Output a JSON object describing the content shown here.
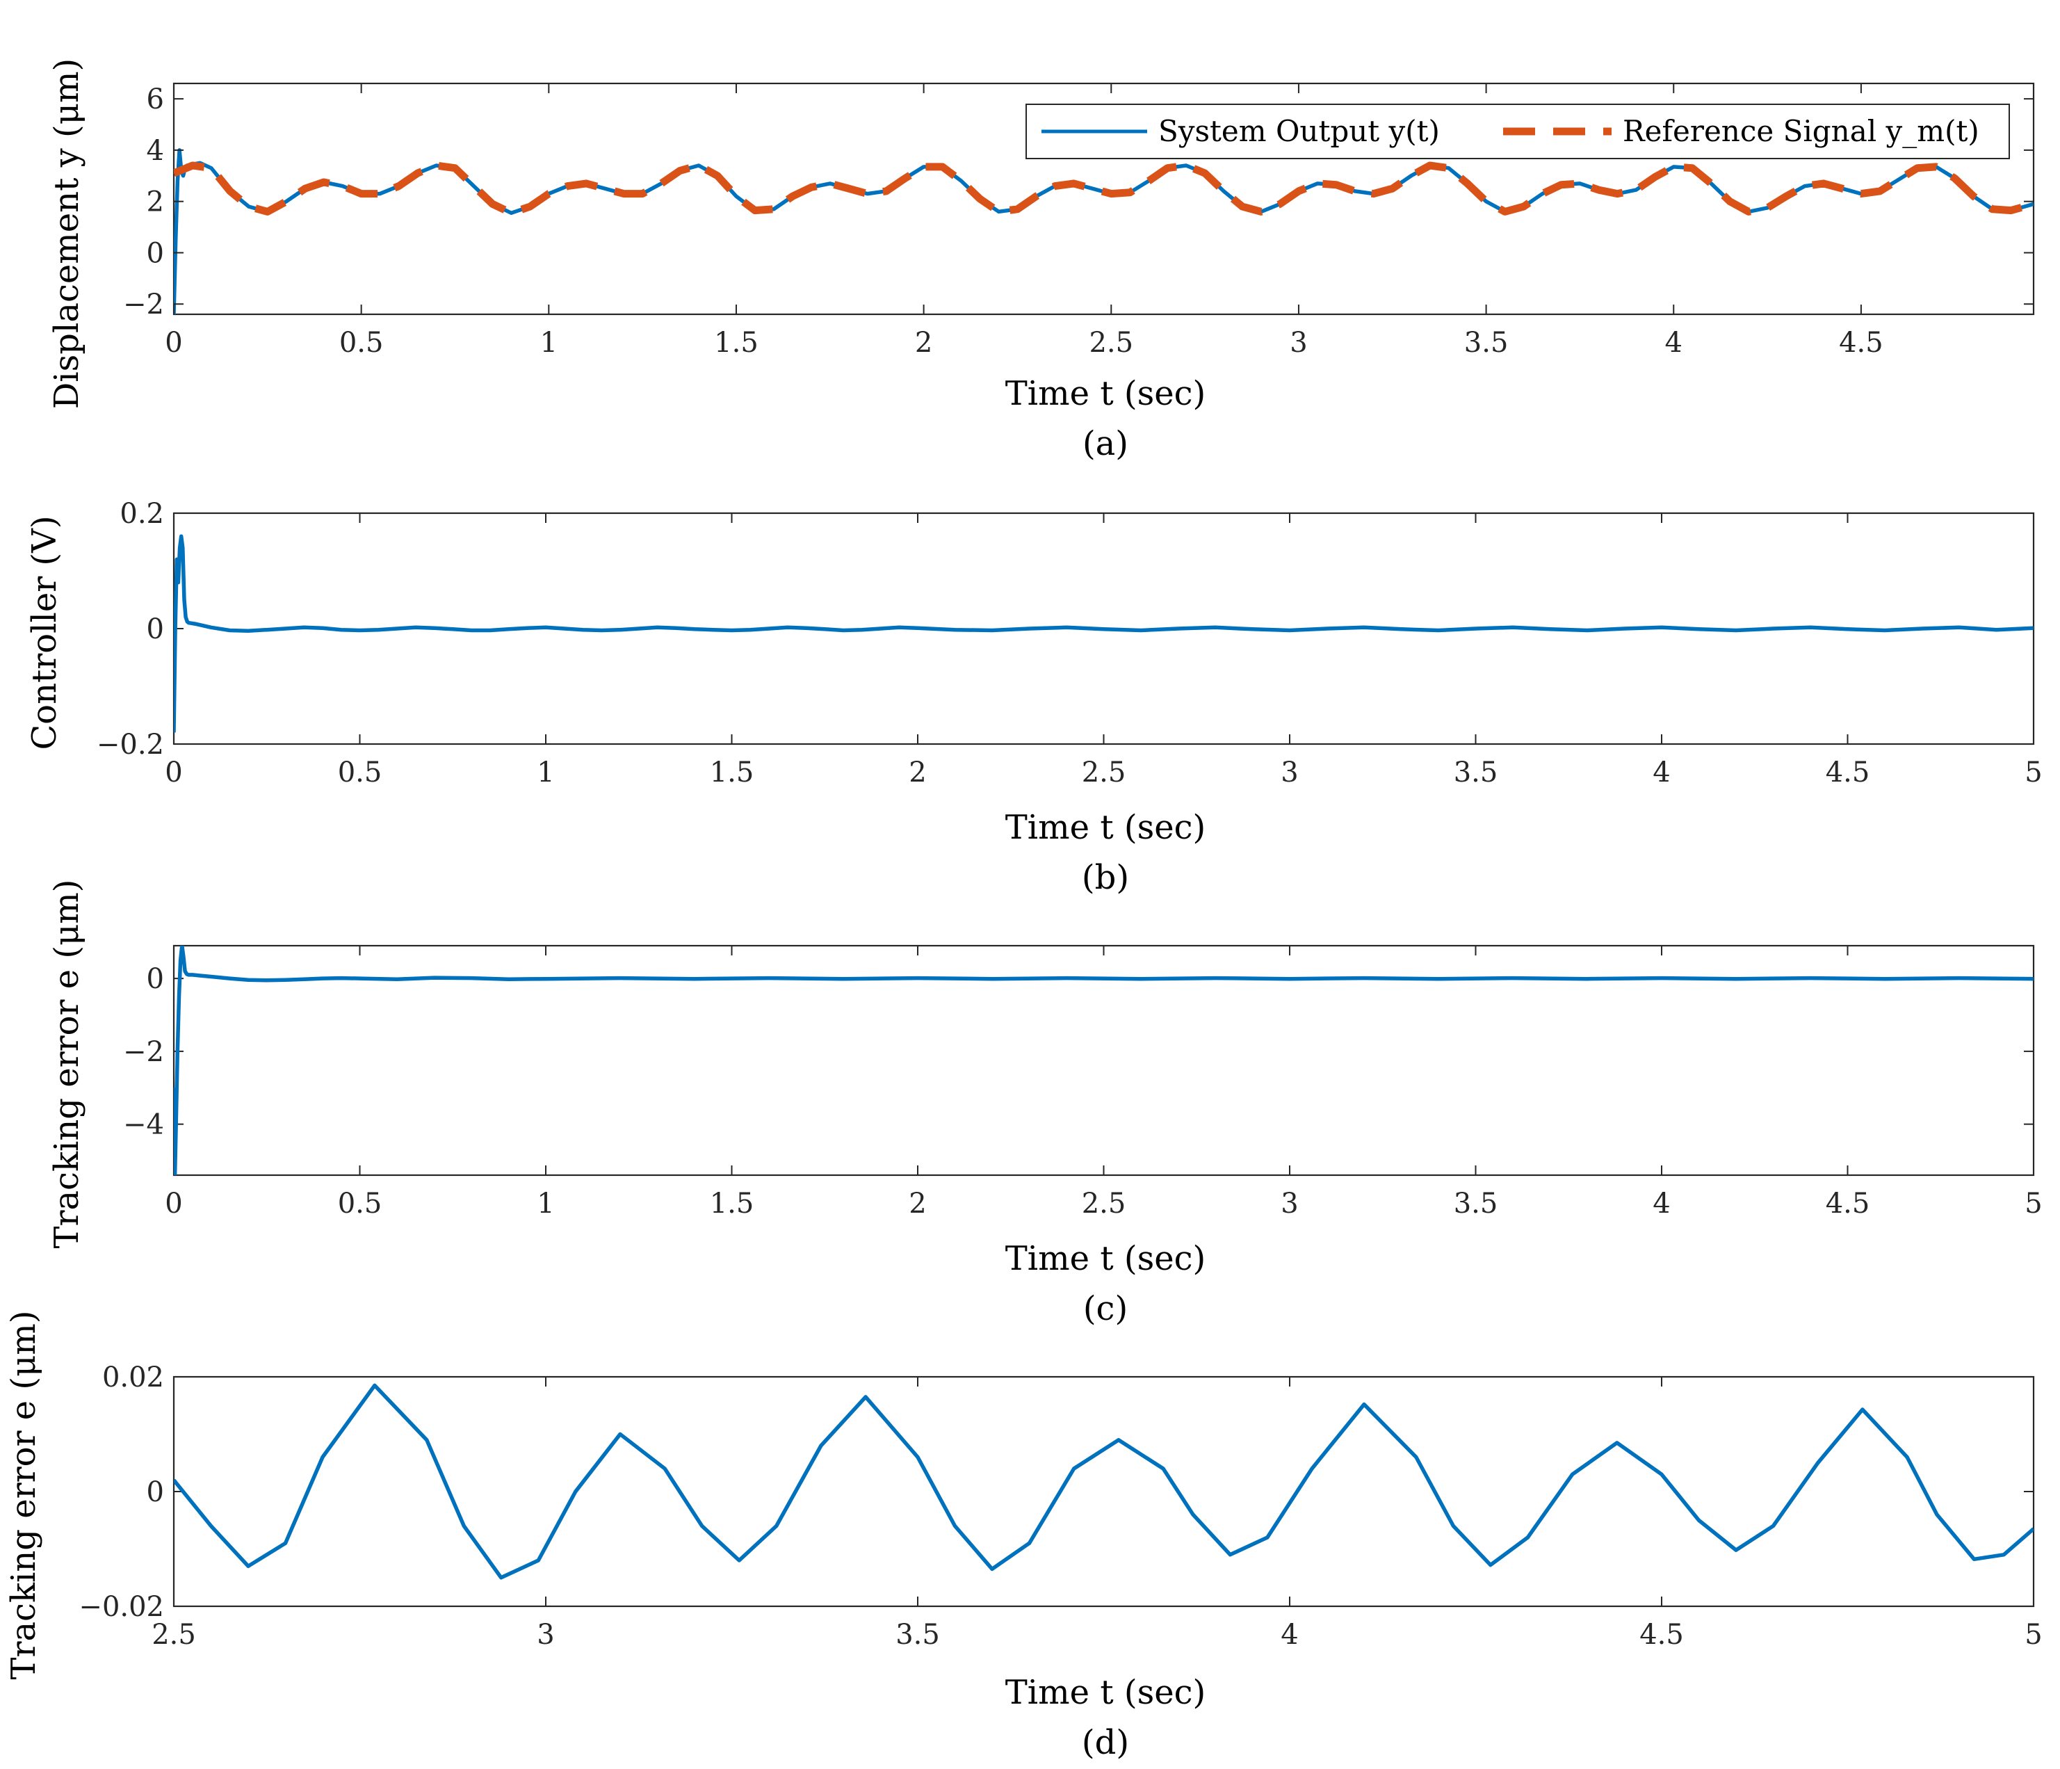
{
  "chart_data": [
    {
      "type": "line",
      "panel_label": "(a)",
      "xlabel": "Time t (sec)",
      "ylabel": "Displacement y (μm)",
      "xlim": [
        0,
        4.96
      ],
      "ylim": [
        -2.4,
        6.6
      ],
      "xticks": [
        0,
        0.5,
        1,
        1.5,
        2,
        2.5,
        3,
        3.5,
        4,
        4.5
      ],
      "xtick_labels": [
        "0",
        "0.5",
        "1",
        "1.5",
        "2",
        "2.5",
        "3",
        "3.5",
        "4",
        "4.5"
      ],
      "yticks": [
        -2,
        0,
        2,
        4,
        6
      ],
      "ytick_labels": [
        "−2",
        "0",
        "2",
        "4",
        "6"
      ],
      "grid": false,
      "legend_position": "top-right",
      "series": [
        {
          "name": "System Output y(t)",
          "color": "#0072bd",
          "style": "solid",
          "x": [
            0,
            0.005,
            0.01,
            0.015,
            0.02,
            0.025,
            0.03,
            0.035,
            0.04,
            0.05,
            0.07,
            0.1,
            0.15,
            0.2,
            0.25,
            0.3,
            0.35,
            0.4,
            0.45,
            0.5,
            0.55,
            0.6,
            0.65,
            0.7,
            0.75,
            0.8,
            0.85,
            0.9,
            0.95,
            1.0,
            1.05,
            1.1,
            1.15,
            1.2,
            1.25,
            1.3,
            1.35,
            1.4,
            1.45,
            1.5,
            1.55,
            1.6,
            1.65,
            1.7,
            1.75,
            1.8,
            1.85,
            1.9,
            1.95,
            2.0,
            2.05,
            2.1,
            2.15,
            2.2,
            2.25,
            2.3,
            2.35,
            2.4,
            2.45,
            2.5,
            2.55,
            2.6,
            2.65,
            2.7,
            2.75,
            2.8,
            2.85,
            2.9,
            2.95,
            3.0,
            3.05,
            3.1,
            3.15,
            3.2,
            3.25,
            3.3,
            3.35,
            3.4,
            3.45,
            3.5,
            3.55,
            3.6,
            3.65,
            3.7,
            3.75,
            3.8,
            3.85,
            3.9,
            3.95,
            4.0,
            4.05,
            4.1,
            4.15,
            4.2,
            4.25,
            4.3,
            4.35,
            4.4,
            4.45,
            4.5,
            4.55,
            4.6,
            4.65,
            4.7,
            4.75,
            4.8,
            4.85,
            4.9,
            4.96
          ],
          "y": [
            -2.4,
            0.5,
            2.8,
            4.0,
            3.2,
            3.0,
            3.3,
            3.4,
            3.4,
            3.45,
            3.5,
            3.3,
            2.4,
            1.8,
            1.6,
            2.0,
            2.5,
            2.75,
            2.6,
            2.3,
            2.3,
            2.6,
            3.1,
            3.4,
            3.3,
            2.6,
            1.9,
            1.55,
            1.8,
            2.3,
            2.6,
            2.7,
            2.5,
            2.3,
            2.3,
            2.7,
            3.2,
            3.4,
            3.0,
            2.2,
            1.65,
            1.7,
            2.2,
            2.55,
            2.7,
            2.5,
            2.3,
            2.4,
            2.9,
            3.35,
            3.35,
            2.8,
            2.1,
            1.6,
            1.7,
            2.2,
            2.6,
            2.7,
            2.5,
            2.3,
            2.35,
            2.8,
            3.3,
            3.4,
            3.1,
            2.4,
            1.8,
            1.6,
            1.9,
            2.4,
            2.7,
            2.65,
            2.4,
            2.3,
            2.5,
            3.0,
            3.4,
            3.3,
            2.7,
            2.0,
            1.6,
            1.8,
            2.3,
            2.65,
            2.7,
            2.45,
            2.3,
            2.45,
            2.95,
            3.35,
            3.3,
            2.7,
            2.0,
            1.6,
            1.75,
            2.2,
            2.6,
            2.7,
            2.5,
            2.3,
            2.4,
            2.85,
            3.3,
            3.35,
            2.9,
            2.2,
            1.7,
            1.65,
            1.9
          ]
        },
        {
          "name": "Reference Signal y_m(t)",
          "color": "#d95319",
          "style": "dashed",
          "x": [
            0,
            0.05,
            0.1,
            0.15,
            0.2,
            0.25,
            0.3,
            0.35,
            0.4,
            0.45,
            0.5,
            0.55,
            0.6,
            0.65,
            0.7,
            0.75,
            0.8,
            0.85,
            0.9,
            0.95,
            1.0,
            1.05,
            1.1,
            1.15,
            1.2,
            1.25,
            1.3,
            1.35,
            1.4,
            1.45,
            1.5,
            1.55,
            1.6,
            1.65,
            1.7,
            1.75,
            1.8,
            1.85,
            1.9,
            1.95,
            2.0,
            2.05,
            2.1,
            2.15,
            2.2,
            2.25,
            2.3,
            2.35,
            2.4,
            2.45,
            2.5,
            2.55,
            2.6,
            2.65,
            2.7,
            2.75,
            2.8,
            2.85,
            2.9,
            2.95,
            3.0,
            3.05,
            3.1,
            3.15,
            3.2,
            3.25,
            3.3,
            3.35,
            3.4,
            3.45,
            3.5,
            3.55,
            3.6,
            3.65,
            3.7,
            3.75,
            3.8,
            3.85,
            3.9,
            3.95,
            4.0,
            4.05,
            4.1,
            4.15,
            4.2,
            4.25,
            4.3,
            4.35,
            4.4,
            4.45,
            4.5,
            4.55,
            4.6,
            4.65,
            4.7,
            4.75,
            4.8,
            4.85,
            4.9,
            4.96
          ],
          "y": [
            3.1,
            3.4,
            3.3,
            2.4,
            1.8,
            1.6,
            2.0,
            2.5,
            2.75,
            2.6,
            2.3,
            2.3,
            2.6,
            3.1,
            3.4,
            3.3,
            2.6,
            1.9,
            1.55,
            1.8,
            2.3,
            2.6,
            2.7,
            2.5,
            2.3,
            2.3,
            2.7,
            3.2,
            3.4,
            3.0,
            2.2,
            1.65,
            1.7,
            2.2,
            2.55,
            2.7,
            2.5,
            2.3,
            2.4,
            2.9,
            3.35,
            3.35,
            2.8,
            2.1,
            1.6,
            1.7,
            2.2,
            2.6,
            2.7,
            2.5,
            2.3,
            2.35,
            2.8,
            3.3,
            3.4,
            3.1,
            2.4,
            1.8,
            1.6,
            1.9,
            2.4,
            2.7,
            2.65,
            2.4,
            2.3,
            2.5,
            3.0,
            3.4,
            3.3,
            2.7,
            2.0,
            1.6,
            1.8,
            2.3,
            2.65,
            2.7,
            2.45,
            2.3,
            2.45,
            2.95,
            3.35,
            3.3,
            2.7,
            2.0,
            1.6,
            1.75,
            2.2,
            2.6,
            2.7,
            2.5,
            2.3,
            2.4,
            2.85,
            3.3,
            3.35,
            2.9,
            2.2,
            1.7,
            1.65,
            1.9
          ]
        }
      ]
    },
    {
      "type": "line",
      "panel_label": "(b)",
      "xlabel": "Time t (sec)",
      "ylabel": "Controller (V)",
      "xlim": [
        0,
        5
      ],
      "ylim": [
        -0.2,
        0.2
      ],
      "xticks": [
        0,
        0.5,
        1,
        1.5,
        2,
        2.5,
        3,
        3.5,
        4,
        4.5,
        5
      ],
      "xtick_labels": [
        "0",
        "0.5",
        "1",
        "1.5",
        "2",
        "2.5",
        "3",
        "3.5",
        "4",
        "4.5",
        "5"
      ],
      "yticks": [
        -0.2,
        0,
        0.2
      ],
      "ytick_labels": [
        "−0.2",
        "0",
        "0.2"
      ],
      "grid": false,
      "series": [
        {
          "color": "#0072bd",
          "style": "solid",
          "x": [
            0,
            0.004,
            0.008,
            0.012,
            0.016,
            0.02,
            0.024,
            0.028,
            0.032,
            0.036,
            0.04,
            0.06,
            0.1,
            0.15,
            0.2,
            0.25,
            0.3,
            0.35,
            0.4,
            0.45,
            0.5,
            0.55,
            0.6,
            0.65,
            0.7,
            0.75,
            0.8,
            0.85,
            0.9,
            0.95,
            1.0,
            1.05,
            1.1,
            1.15,
            1.2,
            1.25,
            1.3,
            1.35,
            1.4,
            1.45,
            1.5,
            1.55,
            1.6,
            1.65,
            1.7,
            1.75,
            1.8,
            1.85,
            1.9,
            1.95,
            2.0,
            2.1,
            2.2,
            2.3,
            2.4,
            2.5,
            2.6,
            2.7,
            2.8,
            2.9,
            3.0,
            3.1,
            3.2,
            3.3,
            3.4,
            3.5,
            3.6,
            3.7,
            3.8,
            3.9,
            4.0,
            4.1,
            4.2,
            4.3,
            4.4,
            4.5,
            4.6,
            4.7,
            4.8,
            4.9,
            5.0
          ],
          "y": [
            -0.18,
            0.0,
            0.12,
            0.08,
            0.14,
            0.16,
            0.14,
            0.05,
            0.02,
            0.012,
            0.01,
            0.008,
            0.002,
            -0.003,
            -0.004,
            -0.002,
            0.0,
            0.002,
            0.001,
            -0.002,
            -0.003,
            -0.002,
            0.0,
            0.002,
            0.001,
            -0.001,
            -0.003,
            -0.003,
            -0.001,
            0.001,
            0.002,
            0.0,
            -0.002,
            -0.003,
            -0.002,
            0.0,
            0.002,
            0.001,
            -0.001,
            -0.002,
            -0.003,
            -0.002,
            0.0,
            0.002,
            0.001,
            -0.001,
            -0.003,
            -0.002,
            0.0,
            0.002,
            0.001,
            -0.002,
            -0.003,
            0.0,
            0.002,
            -0.001,
            -0.003,
            0.0,
            0.002,
            -0.001,
            -0.003,
            0.0,
            0.002,
            -0.001,
            -0.003,
            0.0,
            0.002,
            -0.001,
            -0.003,
            0.0,
            0.002,
            -0.001,
            -0.003,
            0.0,
            0.002,
            -0.001,
            -0.003,
            0.0,
            0.002,
            -0.002,
            0.001
          ]
        }
      ]
    },
    {
      "type": "line",
      "panel_label": "(c)",
      "xlabel": "Time t (sec)",
      "ylabel": "Tracking error e (μm)",
      "xlim": [
        0,
        5
      ],
      "ylim": [
        -5.4,
        0.9
      ],
      "xticks": [
        0,
        0.5,
        1,
        1.5,
        2,
        2.5,
        3,
        3.5,
        4,
        4.5,
        5
      ],
      "xtick_labels": [
        "0",
        "0.5",
        "1",
        "1.5",
        "2",
        "2.5",
        "3",
        "3.5",
        "4",
        "4.5",
        "5"
      ],
      "yticks": [
        -4,
        -2,
        0
      ],
      "ytick_labels": [
        "−4",
        "−2",
        "0"
      ],
      "grid": false,
      "series": [
        {
          "color": "#0072bd",
          "style": "solid",
          "x": [
            0,
            0.003,
            0.006,
            0.01,
            0.014,
            0.018,
            0.022,
            0.026,
            0.03,
            0.035,
            0.04,
            0.05,
            0.07,
            0.1,
            0.15,
            0.2,
            0.25,
            0.3,
            0.35,
            0.4,
            0.45,
            0.5,
            0.6,
            0.7,
            0.8,
            0.9,
            1.0,
            1.2,
            1.4,
            1.6,
            1.8,
            2.0,
            2.2,
            2.4,
            2.6,
            2.8,
            3.0,
            3.2,
            3.4,
            3.6,
            3.8,
            4.0,
            4.2,
            4.4,
            4.6,
            4.8,
            5.0
          ],
          "y": [
            -3.0,
            -5.4,
            -4.0,
            -2.0,
            -0.5,
            0.5,
            0.9,
            0.6,
            0.2,
            0.12,
            0.1,
            0.1,
            0.08,
            0.05,
            0.0,
            -0.04,
            -0.05,
            -0.04,
            -0.02,
            0.0,
            0.01,
            0.0,
            -0.02,
            0.02,
            0.01,
            -0.02,
            -0.01,
            0.01,
            -0.01,
            0.01,
            -0.01,
            0.01,
            -0.01,
            0.01,
            -0.01,
            0.01,
            -0.01,
            0.01,
            -0.01,
            0.01,
            -0.01,
            0.01,
            -0.01,
            0.01,
            -0.01,
            0.01,
            -0.01
          ]
        }
      ]
    },
    {
      "type": "line",
      "panel_label": "(d)",
      "xlabel": "Time t (sec)",
      "ylabel": "Tracking error e (μm)",
      "xlim": [
        2.5,
        5
      ],
      "ylim": [
        -0.02,
        0.02
      ],
      "xticks": [
        2.5,
        3,
        3.5,
        4,
        4.5,
        5
      ],
      "xtick_labels": [
        "2.5",
        "3",
        "3.5",
        "4",
        "4.5",
        "5"
      ],
      "yticks": [
        -0.02,
        0,
        0.02
      ],
      "ytick_labels": [
        "−0.02",
        "0",
        "0.02"
      ],
      "grid": false,
      "series": [
        {
          "color": "#0072bd",
          "style": "solid",
          "x": [
            2.5,
            2.55,
            2.6,
            2.65,
            2.7,
            2.77,
            2.84,
            2.89,
            2.94,
            2.99,
            3.04,
            3.1,
            3.16,
            3.21,
            3.26,
            3.31,
            3.37,
            3.43,
            3.5,
            3.55,
            3.6,
            3.65,
            3.71,
            3.77,
            3.83,
            3.87,
            3.92,
            3.97,
            4.03,
            4.1,
            4.17,
            4.22,
            4.27,
            4.32,
            4.38,
            4.44,
            4.5,
            4.55,
            4.6,
            4.65,
            4.71,
            4.77,
            4.83,
            4.87,
            4.92,
            4.96,
            5.0
          ],
          "y": [
            0.002,
            -0.006,
            -0.013,
            -0.009,
            0.006,
            0.0185,
            0.009,
            -0.006,
            -0.015,
            -0.012,
            0.0,
            0.01,
            0.004,
            -0.006,
            -0.012,
            -0.006,
            0.008,
            0.0165,
            0.006,
            -0.006,
            -0.0135,
            -0.009,
            0.004,
            0.009,
            0.004,
            -0.004,
            -0.011,
            -0.008,
            0.004,
            0.0152,
            0.006,
            -0.006,
            -0.0128,
            -0.008,
            0.003,
            0.0085,
            0.003,
            -0.005,
            -0.0102,
            -0.006,
            0.005,
            0.0143,
            0.006,
            -0.004,
            -0.0118,
            -0.011,
            -0.0065
          ]
        }
      ]
    }
  ]
}
